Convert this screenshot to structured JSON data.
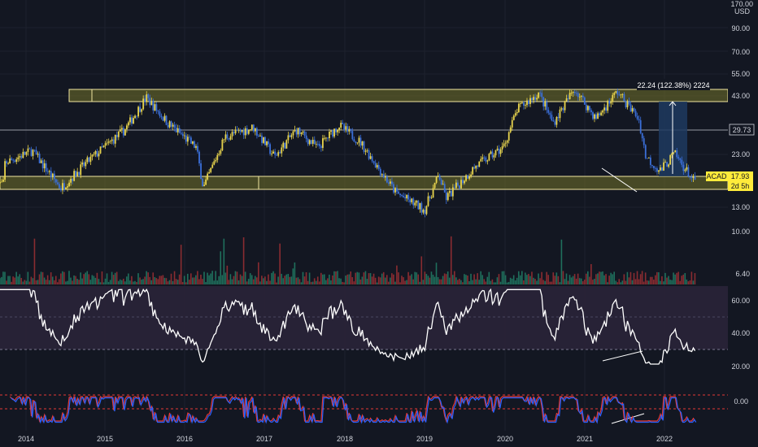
{
  "symbol": "ACAD",
  "currency": "USD",
  "top_scale_label": "170.00",
  "price_axis": {
    "labels": [
      "90.00",
      "70.00",
      "55.00",
      "43.00",
      "29.73",
      "23.00",
      "17.93",
      "13.00"
    ]
  },
  "volume_axis": {
    "labels": [
      "10.00",
      "6.40"
    ]
  },
  "rsi_axis": {
    "labels": [
      "60.00",
      "40.00",
      "20.00"
    ]
  },
  "osc_axis": {
    "labels": [
      "0.00"
    ]
  },
  "time_axis": {
    "labels": [
      "2014",
      "2015",
      "2016",
      "2017",
      "2018",
      "2019",
      "2020",
      "2021",
      "2022"
    ]
  },
  "last_price": {
    "value": "17.93",
    "countdown": "2d 5h"
  },
  "horizontal_line_label": "29.73",
  "measure_label": "22.24 (122.38%) 2224",
  "colors": {
    "background": "#131722",
    "up_candle": "#e8d44d",
    "down_candle": "#3b6fd9",
    "zone_fill": "#6b6a2a",
    "zone_border": "#f0e6a0",
    "rsi_band": "#2a2438",
    "rsi_line": "#ffffff",
    "osc_line_1": "#e53935",
    "osc_line_2": "#2962ff",
    "measure_fill": "#1e3a5f",
    "price_tag": "#ffeb3b"
  },
  "chart_data": {
    "type": "candlestick",
    "title": "",
    "x_range": [
      "2013-09",
      "2022-03"
    ],
    "y_log_range": [
      12.5,
      170
    ],
    "support_zone": [
      15.8,
      18.6
    ],
    "resistance_zone": [
      41.5,
      46.5
    ],
    "horizontal_line": 29.73,
    "price_path": [
      [
        "2013-10",
        23
      ],
      [
        "2014-02",
        27
      ],
      [
        "2014-06",
        17
      ],
      [
        "2014-10",
        24
      ],
      [
        "2015-03",
        35
      ],
      [
        "2015-06",
        52
      ],
      [
        "2015-09",
        38
      ],
      [
        "2016-01",
        28
      ],
      [
        "2016-02",
        17
      ],
      [
        "2016-05",
        32
      ],
      [
        "2016-09",
        36
      ],
      [
        "2016-12",
        25
      ],
      [
        "2017-03",
        35
      ],
      [
        "2017-06",
        28
      ],
      [
        "2017-09",
        37
      ],
      [
        "2017-12",
        30
      ],
      [
        "2018-05",
        16
      ],
      [
        "2018-09",
        13
      ],
      [
        "2018-11",
        20
      ],
      [
        "2018-12",
        15
      ],
      [
        "2019-04",
        22
      ],
      [
        "2019-08",
        28
      ],
      [
        "2019-10",
        45
      ],
      [
        "2020-01",
        55
      ],
      [
        "2020-03",
        38
      ],
      [
        "2020-06",
        58
      ],
      [
        "2020-09",
        40
      ],
      [
        "2020-12",
        56
      ],
      [
        "2021-03",
        40
      ],
      [
        "2021-04",
        25
      ],
      [
        "2021-06",
        21
      ],
      [
        "2021-08",
        26
      ],
      [
        "2021-11",
        17.93
      ]
    ],
    "rsi_range": [
      15,
      70
    ],
    "rsi_levels": [
      30,
      70
    ],
    "volume_range": [
      0,
      12
    ]
  }
}
